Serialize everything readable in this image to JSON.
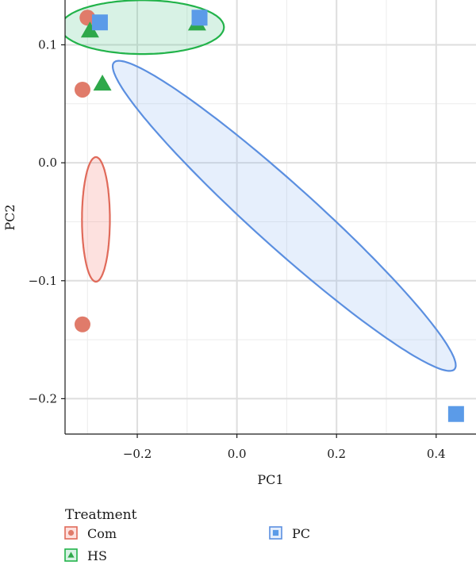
{
  "chart_data": {
    "type": "scatter",
    "xlabel": "PC1",
    "ylabel": "PC2",
    "xlim": [
      -0.345,
      0.48
    ],
    "ylim": [
      -0.23,
      0.138
    ],
    "x_ticks": [
      -0.2,
      0.0,
      0.2,
      0.4
    ],
    "y_ticks": [
      -0.2,
      -0.1,
      0.0,
      0.1
    ],
    "x_tick_labels": [
      "−0.2",
      "0.0",
      "0.2",
      "0.4"
    ],
    "y_tick_labels": [
      "−0.2",
      "−0.1",
      "0.0",
      "0.1"
    ],
    "grid": true,
    "legend": {
      "title": "Treatment",
      "position": "bottom"
    },
    "series": [
      {
        "name": "Com",
        "marker": "circle",
        "color": "#E07B6A",
        "line_color": "#E06A5A",
        "fill_color": "#F8766D",
        "points": [
          {
            "x": -0.3,
            "y": 0.123
          },
          {
            "x": -0.31,
            "y": 0.062
          },
          {
            "x": -0.31,
            "y": -0.137
          }
        ]
      },
      {
        "name": "HS",
        "marker": "triangle",
        "color": "#2EA84A",
        "line_color": "#22B34A",
        "fill_color": "#4CC38A",
        "points": [
          {
            "x": -0.295,
            "y": 0.112
          },
          {
            "x": -0.27,
            "y": 0.067
          },
          {
            "x": -0.08,
            "y": 0.118
          }
        ]
      },
      {
        "name": "PC",
        "marker": "square",
        "color": "#5B9BE8",
        "line_color": "#5B8FE0",
        "fill_color": "#8FB5F0",
        "points": [
          {
            "x": -0.275,
            "y": 0.119
          },
          {
            "x": -0.075,
            "y": 0.123
          },
          {
            "x": 0.44,
            "y": -0.213
          }
        ]
      }
    ]
  }
}
